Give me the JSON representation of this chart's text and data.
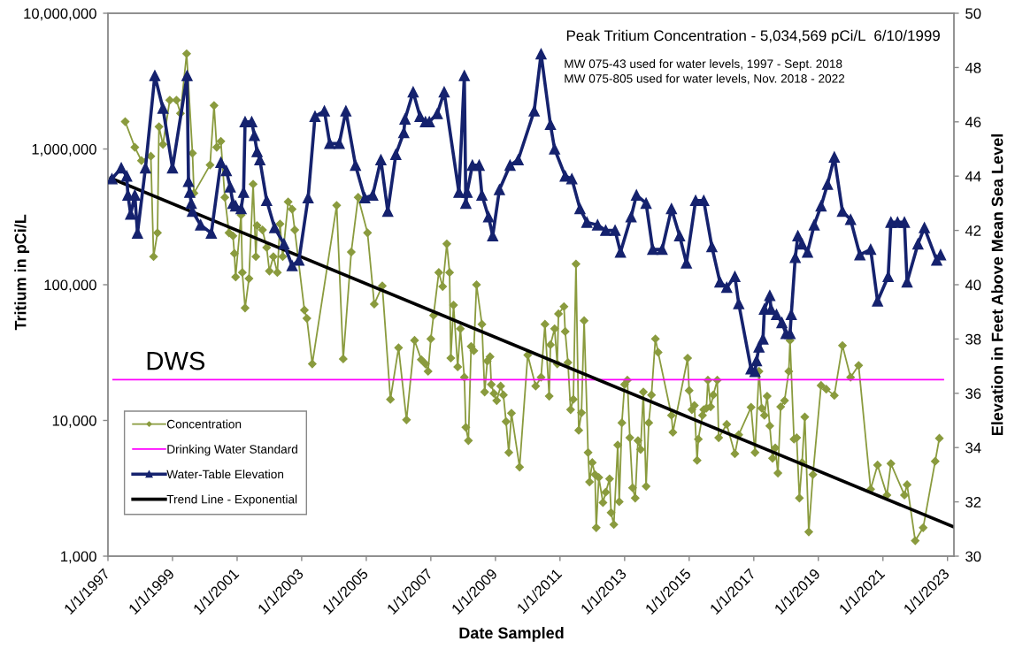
{
  "chart_data": {
    "type": "line",
    "xlabel": "Date Sampled",
    "ylabel": "Tritium in pCi/L",
    "y2label": "Elevation in Feet Above Mean Sea Level",
    "log": "y",
    "legend": "bottom left",
    "xlim": [
      "1997-01-01",
      "2023-03-15"
    ],
    "xticks": [
      {
        "value": "1997-01-01",
        "label": "1/1/1997"
      },
      {
        "value": "1999-01-01",
        "label": "1/1/1999"
      },
      {
        "value": "2001-01-01",
        "label": "1/1/2001"
      },
      {
        "value": "2003-01-01",
        "label": "1/1/2003"
      },
      {
        "value": "2005-01-01",
        "label": "1/1/2005"
      },
      {
        "value": "2007-01-01",
        "label": "1/1/2007"
      },
      {
        "value": "2009-01-01",
        "label": "1/1/2009"
      },
      {
        "value": "2011-01-01",
        "label": "1/1/2011"
      },
      {
        "value": "2013-01-01",
        "label": "1/1/2013"
      },
      {
        "value": "2015-01-01",
        "label": "1/1/2015"
      },
      {
        "value": "2017-01-01",
        "label": "1/1/2017"
      },
      {
        "value": "2019-01-01",
        "label": "1/1/2019"
      },
      {
        "value": "2021-01-01",
        "label": "1/1/2021"
      },
      {
        "value": "2023-01-01",
        "label": "1/1/2023"
      }
    ],
    "ylim": [
      1000,
      10000000
    ],
    "yticks": [
      {
        "value": 1000,
        "label": "1,000"
      },
      {
        "value": 10000,
        "label": "10,000"
      },
      {
        "value": 100000,
        "label": "100,000"
      },
      {
        "value": 1000000,
        "label": "1,000,000"
      },
      {
        "value": 10000000,
        "label": "10,000,000"
      }
    ],
    "y2lim": [
      30,
      50
    ],
    "y2ticks": [
      30,
      32,
      34,
      36,
      38,
      40,
      42,
      44,
      46,
      48,
      50
    ],
    "series": [
      {
        "name": "Concentration",
        "color": "#8a9b3e",
        "marker": "diamond",
        "x": [
          "1997-07-15",
          "1997-11-01",
          "1998-01-15",
          "1998-05-01",
          "1998-06-01",
          "1998-07-15",
          "1998-08-01",
          "1998-09-15",
          "1998-12-01",
          "1999-02-15",
          "1999-04-01",
          "1999-06-10",
          "1999-08-15",
          "1999-09-01",
          "2000-03-01",
          "2000-04-15",
          "2000-05-15",
          "2000-07-01",
          "2000-08-15",
          "2000-10-01",
          "2000-11-15",
          "2000-12-01",
          "2000-12-15",
          "2001-02-15",
          "2001-03-01",
          "2001-04-01",
          "2001-05-15",
          "2001-07-01",
          "2001-08-01",
          "2001-08-15",
          "2001-10-15",
          "2001-12-01",
          "2002-01-01",
          "2002-02-15",
          "2002-04-01",
          "2002-05-01",
          "2002-06-01",
          "2002-08-01",
          "2002-09-15",
          "2002-10-15",
          "2003-02-01",
          "2003-03-01",
          "2003-05-01",
          "2004-02-01",
          "2004-04-15",
          "2004-07-15",
          "2004-10-01",
          "2005-01-15",
          "2005-04-01",
          "2005-07-01",
          "2005-10-01",
          "2006-01-01",
          "2006-04-01",
          "2006-07-01",
          "2006-09-15",
          "2006-11-01",
          "2006-12-01",
          "2007-01-01",
          "2007-02-01",
          "2007-04-01",
          "2007-05-15",
          "2007-07-01",
          "2007-08-01",
          "2007-08-15",
          "2007-09-15",
          "2007-11-01",
          "2007-12-01",
          "2008-01-15",
          "2008-02-01",
          "2008-03-01",
          "2008-04-01",
          "2008-05-01",
          "2008-06-01",
          "2008-08-01",
          "2008-09-01",
          "2008-10-01",
          "2008-11-01",
          "2008-11-15",
          "2008-12-15",
          "2009-01-15",
          "2009-03-01",
          "2009-04-01",
          "2009-05-01",
          "2009-06-01",
          "2009-07-01",
          "2009-10-01",
          "2010-01-01",
          "2010-04-01",
          "2010-06-01",
          "2010-07-15",
          "2010-09-01",
          "2010-09-15",
          "2010-11-01",
          "2010-12-01",
          "2010-12-15",
          "2011-02-15",
          "2011-03-01",
          "2011-04-01",
          "2011-05-01",
          "2011-06-01",
          "2011-07-01",
          "2011-08-01",
          "2011-09-01",
          "2011-10-01",
          "2011-11-15",
          "2011-12-01",
          "2012-01-01",
          "2012-02-01",
          "2012-02-15",
          "2012-03-15",
          "2012-05-01",
          "2012-06-01",
          "2012-07-15",
          "2012-08-01",
          "2012-09-01",
          "2012-10-15",
          "2012-11-01",
          "2012-12-01",
          "2013-01-01",
          "2013-02-01",
          "2013-03-01",
          "2013-04-01",
          "2013-05-01",
          "2013-06-01",
          "2013-07-01",
          "2013-08-01",
          "2013-09-01",
          "2013-10-01",
          "2013-11-01",
          "2013-12-15",
          "2014-01-15",
          "2014-06-15",
          "2014-07-01",
          "2014-12-15",
          "2015-01-01",
          "2015-02-01",
          "2015-03-01",
          "2015-04-01",
          "2015-04-15",
          "2015-06-01",
          "2015-06-15",
          "2015-07-15",
          "2015-08-01",
          "2015-09-01",
          "2015-10-01",
          "2015-11-15",
          "2015-12-01",
          "2016-03-01",
          "2016-06-01",
          "2016-07-15",
          "2016-12-01",
          "2017-01-15",
          "2017-03-01",
          "2017-04-01",
          "2017-05-01",
          "2017-06-01",
          "2017-07-01",
          "2017-08-01",
          "2017-09-01",
          "2017-10-01",
          "2017-11-01",
          "2017-12-15",
          "2018-02-01",
          "2018-02-15",
          "2018-04-01",
          "2018-05-01",
          "2018-06-01",
          "2018-07-01",
          "2018-08-01",
          "2018-09-15",
          "2018-11-01",
          "2019-02-01",
          "2019-04-01",
          "2019-07-01",
          "2019-10-01",
          "2020-01-01",
          "2020-04-01",
          "2020-08-15",
          "2020-11-01",
          "2021-02-15",
          "2021-04-01",
          "2021-09-01",
          "2021-10-01",
          "2022-01-01",
          "2022-04-01",
          "2022-08-15",
          "2022-10-01"
        ],
        "values": [
          1590000,
          1030000,
          820000,
          885000,
          161000,
          241000,
          1460000,
          1080000,
          2290000,
          2290000,
          1830000,
          5034569,
          930000,
          473000,
          762000,
          2090000,
          1030000,
          1140000,
          440000,
          241000,
          229000,
          170000,
          114000,
          326000,
          123000,
          67400,
          111000,
          551000,
          161000,
          273000,
          253000,
          188000,
          126000,
          161000,
          123000,
          280000,
          161000,
          408000,
          360000,
          253000,
          65000,
          56500,
          26100,
          384000,
          28400,
          174000,
          440000,
          241000,
          72000,
          98000,
          14300,
          34300,
          10100,
          38900,
          28000,
          26100,
          23000,
          39900,
          59400,
          123000,
          97000,
          200000,
          123000,
          28800,
          70800,
          24800,
          47400,
          20800,
          8900,
          7100,
          35100,
          32600,
          100000,
          51200,
          16200,
          27400,
          29500,
          18400,
          15800,
          14000,
          17900,
          15400,
          9800,
          5800,
          11300,
          4530,
          30300,
          17900,
          20800,
          51200,
          15100,
          36100,
          47400,
          26100,
          61000,
          69000,
          45200,
          26700,
          12000,
          14300,
          142000,
          8450,
          11400,
          54300,
          5800,
          3520,
          4890,
          3990,
          1620,
          3800,
          2480,
          2960,
          3710,
          2090,
          1710,
          6590,
          2520,
          9600,
          18400,
          19800,
          7460,
          3190,
          2680,
          7100,
          6110,
          16200,
          3270,
          9600,
          15400,
          39900,
          31800,
          10900,
          8170,
          28800,
          16600,
          12000,
          12900,
          5080,
          7280,
          10900,
          12000,
          12300,
          19800,
          12600,
          15400,
          19800,
          7460,
          9350,
          5680,
          7850,
          12500,
          5800,
          23000,
          12300,
          10900,
          15100,
          9120,
          5260,
          6270,
          4090,
          12600,
          14000,
          23000,
          38900,
          7280,
          7460,
          2680,
          4890,
          10600,
          1510,
          3990,
          18100,
          17000,
          15300,
          35600,
          20800,
          25400,
          3110,
          4690,
          2820,
          4810,
          2820,
          3360,
          1300,
          1620,
          5000,
          7390
        ]
      },
      {
        "name": "Drinking Water Standard",
        "color": "#ff00ff",
        "x": [
          "1997-03-01",
          "2022-11-15"
        ],
        "values": [
          20000,
          20000
        ]
      },
      {
        "name": "Water-Table Elevation",
        "color": "#15226e",
        "marker": "triangle",
        "axis": "y2",
        "x": [
          "1997-02-15",
          "1997-06-01",
          "1997-08-01",
          "1997-08-15",
          "1997-09-15",
          "1997-11-01",
          "1997-12-01",
          "1998-03-01",
          "1998-06-15",
          "1998-09-15",
          "1999-01-01",
          "1999-06-15",
          "1999-07-01",
          "1999-07-15",
          "1999-08-01",
          "1999-08-15",
          "1999-11-15",
          "2000-03-15",
          "2000-07-01",
          "2000-09-01",
          "2000-10-15",
          "2000-11-15",
          "2000-12-15",
          "2001-02-15",
          "2001-03-15",
          "2001-04-01",
          "2001-06-15",
          "2001-07-15",
          "2001-08-15",
          "2001-09-15",
          "2001-12-01",
          "2002-03-01",
          "2002-06-15",
          "2002-09-15",
          "2002-12-01",
          "2003-03-15",
          "2003-06-01",
          "2003-09-15",
          "2003-11-15",
          "2004-03-01",
          "2004-05-15",
          "2004-09-01",
          "2004-12-15",
          "2005-03-15",
          "2005-06-15",
          "2005-09-01",
          "2005-12-01",
          "2006-03-01",
          "2006-03-15",
          "2006-06-15",
          "2006-09-01",
          "2006-11-01",
          "2006-12-15",
          "2007-03-15",
          "2007-06-01",
          "2007-11-15",
          "2008-01-15",
          "2008-02-01",
          "2008-02-15",
          "2008-04-15",
          "2008-07-01",
          "2008-08-01",
          "2008-10-15",
          "2008-12-01",
          "2009-02-15",
          "2009-06-15",
          "2009-09-15",
          "2010-03-15",
          "2010-06-01",
          "2010-09-15",
          "2010-11-01",
          "2011-03-01",
          "2011-05-15",
          "2011-08-15",
          "2011-11-01",
          "2012-03-01",
          "2012-06-01",
          "2012-09-15",
          "2012-11-15",
          "2013-03-15",
          "2013-05-15",
          "2013-09-01",
          "2013-11-15",
          "2014-03-01",
          "2014-06-15",
          "2014-09-15",
          "2014-12-01",
          "2015-03-15",
          "2015-06-15",
          "2015-09-15",
          "2015-12-15",
          "2016-03-01",
          "2016-06-01",
          "2016-07-15",
          "2016-12-01",
          "2017-01-15",
          "2017-02-01",
          "2017-03-01",
          "2017-04-15",
          "2017-05-01",
          "2017-07-01",
          "2017-07-15",
          "2017-09-15",
          "2017-11-15",
          "2018-01-01",
          "2018-02-15",
          "2018-03-01",
          "2018-04-15",
          "2018-05-15",
          "2018-07-01",
          "2018-09-01",
          "2018-11-15",
          "2019-02-01",
          "2019-04-15",
          "2019-07-01",
          "2019-10-01",
          "2020-01-01",
          "2020-04-15",
          "2020-08-15",
          "2020-11-01",
          "2021-03-01",
          "2021-04-01",
          "2021-06-15",
          "2021-09-01",
          "2021-10-01",
          "2022-02-01",
          "2022-04-15",
          "2022-09-01",
          "2022-10-15"
        ],
        "values": [
          43.9,
          44.3,
          44.0,
          43.3,
          42.6,
          43.3,
          41.9,
          44.3,
          47.7,
          46.5,
          44.3,
          47.7,
          43.8,
          43.4,
          43.0,
          42.7,
          42.2,
          41.9,
          44.5,
          44.2,
          43.6,
          43.0,
          42.9,
          42.8,
          43.4,
          46.0,
          46.0,
          45.5,
          44.9,
          44.6,
          43.1,
          42.1,
          41.5,
          40.7,
          40.9,
          43.2,
          46.2,
          46.4,
          45.2,
          45.2,
          46.4,
          44.4,
          43.2,
          43.3,
          44.6,
          42.7,
          44.8,
          45.6,
          46.1,
          47.1,
          46.2,
          46.0,
          46.0,
          46.3,
          47.1,
          43.4,
          47.7,
          43.0,
          43.4,
          44.4,
          44.4,
          43.3,
          42.5,
          41.8,
          43.5,
          44.4,
          44.6,
          46.4,
          48.5,
          45.9,
          45.0,
          44.0,
          43.9,
          42.8,
          42.3,
          42.2,
          42.0,
          42.0,
          41.2,
          42.5,
          43.3,
          43.0,
          41.3,
          41.3,
          42.8,
          41.8,
          40.8,
          43.1,
          43.1,
          41.4,
          40.1,
          39.9,
          40.3,
          39.3,
          36.9,
          36.8,
          37.2,
          37.7,
          38.0,
          39.1,
          39.6,
          39.1,
          38.9,
          38.6,
          38.2,
          38.2,
          38.9,
          41.0,
          41.8,
          41.5,
          41.2,
          42.2,
          42.9,
          43.7,
          44.7,
          42.7,
          42.4,
          41.1,
          41.3,
          39.4,
          40.3,
          42.3,
          42.3,
          42.3,
          40.1,
          41.5,
          42.1,
          40.9,
          41.1
        ]
      },
      {
        "name": "Trend Line - Exponential",
        "color": "#000000",
        "x": [
          "1997-02-01",
          "2023-03-15"
        ],
        "values": [
          610000,
          1640
        ]
      }
    ],
    "annotations": [
      "Peak Tritium Concentration - 5,034,569 pCi/L  6/10/1999",
      "MW 075-43 used for water levels, 1997 - Sept. 2018",
      "MW 075-805 used for water levels, Nov. 2018 - 2022",
      {
        "text": "DWS",
        "x": "1998-03-01",
        "y": 20000
      }
    ]
  }
}
